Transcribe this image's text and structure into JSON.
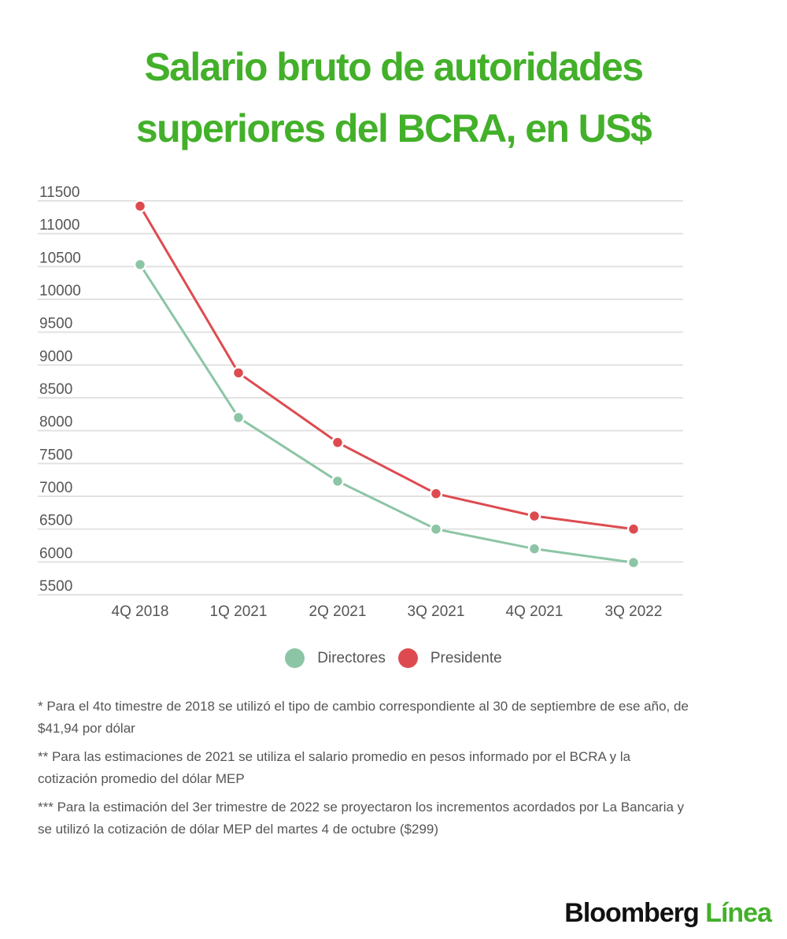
{
  "title": {
    "line1": "Salario bruto de autoridades",
    "line2": "superiores del BCRA, en US$"
  },
  "colors": {
    "title": "#43b02a",
    "directores": "#8cc5a5",
    "presidente": "#dd4b50",
    "grid": "#e2e2e2",
    "brand_accent": "#43b02a"
  },
  "legend": {
    "items": [
      {
        "label": "Directores",
        "color": "#8cc5a5"
      },
      {
        "label": "Presidente",
        "color": "#dd4b50"
      }
    ]
  },
  "notes": [
    "* Para el 4to timestre de 2018 se utilizó el tipo de cambio correspondiente al 30 de septiembre de ese año, de $41,94 por dólar",
    "** Para las estimaciones de 2021 se utiliza el salario promedio en pesos informado por el BCRA y la cotización promedio del dólar MEP",
    "*** Para la estimación del 3er trimestre de 2022 se proyectaron los incrementos acordados por La Bancaria y se utilizó la cotización de dólar MEP del martes 4 de octubre ($299)"
  ],
  "brand": {
    "part1": "Bloomberg",
    "part2": "Línea"
  },
  "chart_data": {
    "type": "line",
    "title": "Salario bruto de autoridades superiores del BCRA, en US$",
    "xlabel": "",
    "ylabel": "",
    "categories": [
      "4Q 2018",
      "1Q 2021",
      "2Q 2021",
      "3Q 2021",
      "4Q 2021",
      "3Q 2022"
    ],
    "series": [
      {
        "name": "Directores",
        "color": "#8cc5a5",
        "values": [
          10530,
          8200,
          7230,
          6500,
          6200,
          5990
        ]
      },
      {
        "name": "Presidente",
        "color": "#dd4b50",
        "values": [
          11420,
          8880,
          7820,
          7040,
          6700,
          6500
        ]
      }
    ],
    "yticks": [
      11500,
      11000,
      10500,
      10000,
      9500,
      9000,
      8500,
      8000,
      7500,
      7000,
      6500,
      6000,
      5500
    ],
    "ylim": [
      5000,
      11500
    ],
    "grid": true,
    "legend_position": "bottom"
  }
}
